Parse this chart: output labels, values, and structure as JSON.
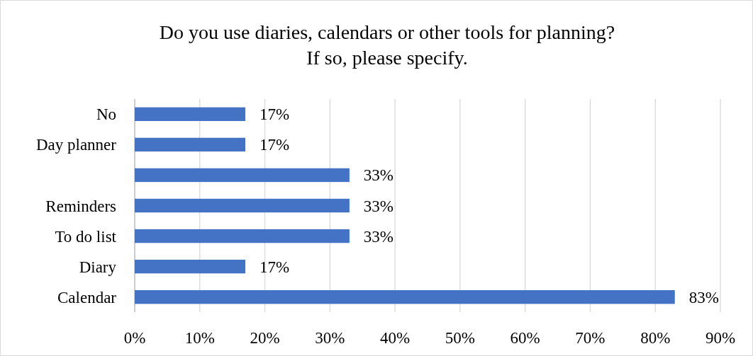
{
  "chart_data": {
    "type": "bar",
    "orientation": "horizontal",
    "title": "Do you use diaries, calendars or other tools for planning?\nIf so, please specify.",
    "categories": [
      "No",
      "Day planner",
      null,
      "Reminders",
      "To do list",
      "Diary",
      "Calendar"
    ],
    "values": [
      17,
      17,
      33,
      33,
      33,
      17,
      83
    ],
    "value_labels": [
      "17%",
      "17%",
      "33%",
      "33%",
      "33%",
      "17%",
      "83%"
    ],
    "color": "#4472c4",
    "xlim": [
      0,
      90
    ],
    "xticks": [
      {
        "value": 0,
        "label": "0%"
      },
      {
        "value": 10,
        "label": "10%"
      },
      {
        "value": 20,
        "label": "20%"
      },
      {
        "value": 30,
        "label": "30%"
      },
      {
        "value": 40,
        "label": "40%"
      },
      {
        "value": 50,
        "label": "50%"
      },
      {
        "value": 60,
        "label": "60%"
      },
      {
        "value": 70,
        "label": "70%"
      },
      {
        "value": 80,
        "label": "80%"
      },
      {
        "value": 90,
        "label": "90%"
      }
    ],
    "grid": "x"
  }
}
